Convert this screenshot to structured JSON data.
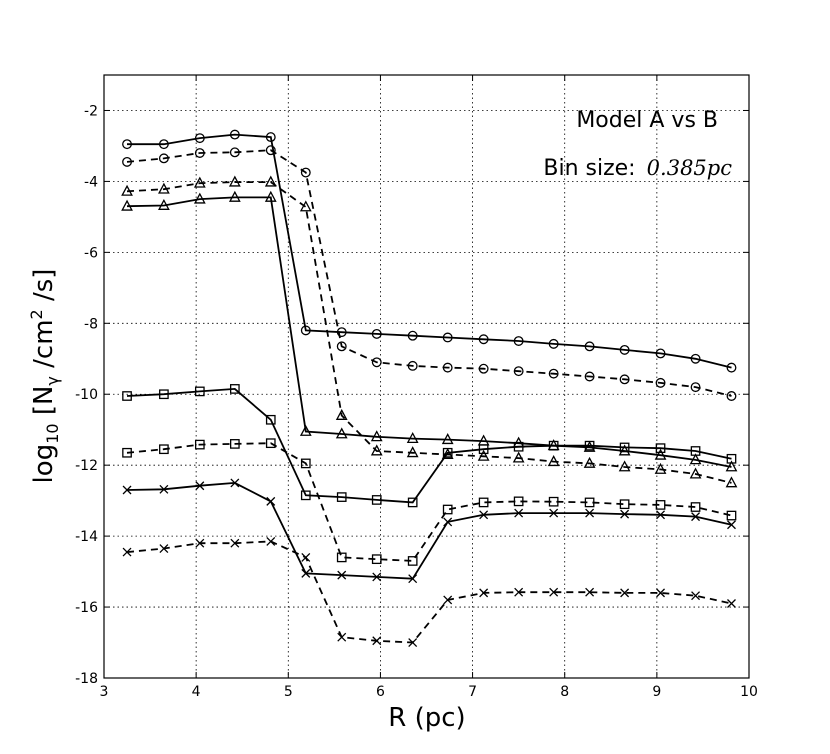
{
  "chart_data": {
    "type": "line",
    "annotation_title": "Model A vs B",
    "annotation_bin_label": "Bin size:",
    "annotation_bin_value": "0.385pc",
    "xlabel": "R (pc)",
    "ylabel_base": "log",
    "ylabel_sub": "10",
    "ylabel_mid": " [N",
    "ylabel_gamma": "γ",
    "ylabel_unit": " /cm",
    "ylabel_sup": "2",
    "ylabel_end": " /s]",
    "xlim": [
      3,
      10
    ],
    "ylim": [
      -18,
      -1
    ],
    "xticks": [
      3,
      4,
      5,
      6,
      7,
      8,
      9,
      10
    ],
    "yticks": [
      -18,
      -16,
      -14,
      -12,
      -10,
      -8,
      -6,
      -4,
      -2
    ],
    "xtick_labels": [
      "3",
      "4",
      "5",
      "6",
      "7",
      "8",
      "9",
      "10"
    ],
    "ytick_labels": [
      "-18",
      "-16",
      "-14",
      "-12",
      "-10",
      "-8",
      "-6",
      "-4",
      "-2"
    ],
    "grid": true,
    "x": [
      3.25,
      3.65,
      4.04,
      4.42,
      4.81,
      5.19,
      5.58,
      5.96,
      6.35,
      6.73,
      7.12,
      7.5,
      7.88,
      8.27,
      8.65,
      9.04,
      9.42,
      9.81
    ],
    "series": [
      {
        "name": "circle-solid",
        "marker": "circle",
        "dashed": false,
        "values": [
          -2.95,
          -2.95,
          -2.78,
          -2.68,
          -2.75,
          -8.2,
          -8.25,
          -8.3,
          -8.35,
          -8.4,
          -8.45,
          -8.5,
          -8.58,
          -8.65,
          -8.75,
          -8.85,
          -9.0,
          -9.25
        ]
      },
      {
        "name": "circle-dashed",
        "marker": "circle",
        "dashed": true,
        "values": [
          -3.45,
          -3.35,
          -3.2,
          -3.18,
          -3.12,
          -3.75,
          -8.65,
          -9.1,
          -9.2,
          -9.25,
          -9.28,
          -9.35,
          -9.42,
          -9.5,
          -9.58,
          -9.68,
          -9.8,
          -10.05
        ]
      },
      {
        "name": "triangle-dashed",
        "marker": "triangle",
        "dashed": true,
        "values": [
          -4.28,
          -4.22,
          -4.05,
          -4.02,
          -4.02,
          -4.72,
          -10.6,
          -11.6,
          -11.65,
          -11.7,
          -11.75,
          -11.8,
          -11.9,
          -11.95,
          -12.05,
          -12.12,
          -12.25,
          -12.5
        ]
      },
      {
        "name": "triangle-solid",
        "marker": "triangle",
        "dashed": false,
        "values": [
          -4.7,
          -4.68,
          -4.5,
          -4.45,
          -4.45,
          -11.05,
          -11.12,
          -11.2,
          -11.25,
          -11.28,
          -11.32,
          -11.38,
          -11.45,
          -11.5,
          -11.6,
          -11.72,
          -11.85,
          -12.05
        ]
      },
      {
        "name": "square-solid",
        "marker": "square",
        "dashed": false,
        "values": [
          -10.05,
          -10.0,
          -9.92,
          -9.85,
          -10.72,
          -12.85,
          -12.9,
          -12.98,
          -13.05,
          -11.65,
          -11.55,
          -11.48,
          -11.45,
          -11.45,
          -11.5,
          -11.52,
          -11.6,
          -11.82
        ]
      },
      {
        "name": "square-dashed",
        "marker": "square",
        "dashed": true,
        "values": [
          -11.65,
          -11.55,
          -11.42,
          -11.4,
          -11.38,
          -11.95,
          -14.6,
          -14.65,
          -14.7,
          -13.25,
          -13.05,
          -13.02,
          -13.03,
          -13.05,
          -13.1,
          -13.12,
          -13.18,
          -13.42
        ]
      },
      {
        "name": "x-solid",
        "marker": "x",
        "dashed": false,
        "values": [
          -12.7,
          -12.68,
          -12.58,
          -12.5,
          -13.02,
          -15.05,
          -15.1,
          -15.15,
          -15.2,
          -13.6,
          -13.4,
          -13.35,
          -13.35,
          -13.35,
          -13.38,
          -13.4,
          -13.45,
          -13.68
        ]
      },
      {
        "name": "x-dashed",
        "marker": "x",
        "dashed": true,
        "values": [
          -14.45,
          -14.35,
          -14.2,
          -14.2,
          -14.15,
          -14.6,
          -16.85,
          -16.95,
          -17.0,
          -15.8,
          -15.6,
          -15.58,
          -15.58,
          -15.58,
          -15.6,
          -15.6,
          -15.68,
          -15.9
        ]
      }
    ]
  }
}
